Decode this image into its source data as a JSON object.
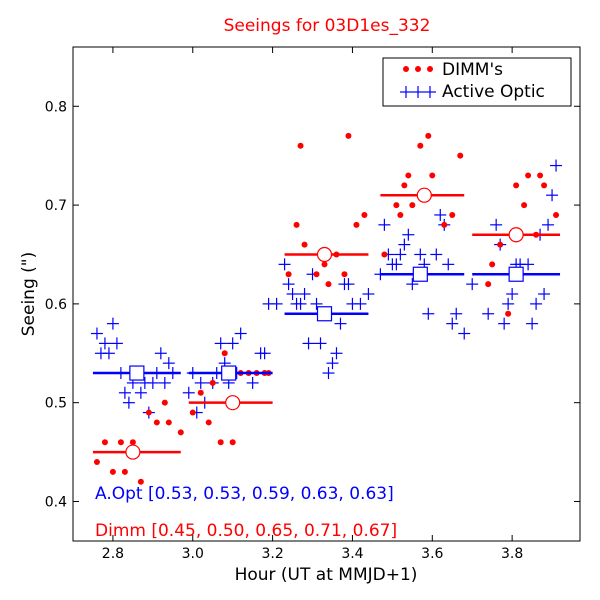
{
  "chart_data": {
    "type": "scatter",
    "title": "Seeings for 03D1es_332",
    "xlabel": "Hour (UT at MMJD+1)",
    "ylabel": "Seeing (\")",
    "xlim": [
      2.7,
      3.97
    ],
    "ylim": [
      0.36,
      0.86
    ],
    "xticks": [
      "2.8",
      "3.0",
      "3.2",
      "3.4",
      "3.6",
      "3.8"
    ],
    "yticks": [
      "0.4",
      "0.5",
      "0.6",
      "0.7",
      "0.8"
    ],
    "grid": false,
    "legend_position": "top-right",
    "colors": {
      "dimm": "#ff0000",
      "aopt": "#0000ff",
      "axes": "#000000",
      "title": "#ff0000"
    },
    "series": [
      {
        "name": "DIMM's",
        "marker": "dot",
        "color": "#ff0000",
        "points": [
          [
            2.76,
            0.44
          ],
          [
            2.78,
            0.46
          ],
          [
            2.8,
            0.43
          ],
          [
            2.82,
            0.46
          ],
          [
            2.83,
            0.43
          ],
          [
            2.85,
            0.46
          ],
          [
            2.87,
            0.42
          ],
          [
            2.89,
            0.49
          ],
          [
            2.91,
            0.48
          ],
          [
            2.93,
            0.5
          ],
          [
            2.94,
            0.48
          ],
          [
            2.97,
            0.47
          ],
          [
            3.0,
            0.49
          ],
          [
            3.02,
            0.51
          ],
          [
            3.04,
            0.48
          ],
          [
            3.05,
            0.52
          ],
          [
            3.07,
            0.46
          ],
          [
            3.08,
            0.55
          ],
          [
            3.1,
            0.46
          ],
          [
            3.12,
            0.53
          ],
          [
            3.14,
            0.53
          ],
          [
            3.16,
            0.53
          ],
          [
            3.18,
            0.53
          ],
          [
            3.19,
            0.53
          ],
          [
            3.24,
            0.63
          ],
          [
            3.26,
            0.68
          ],
          [
            3.27,
            0.76
          ],
          [
            3.28,
            0.66
          ],
          [
            3.31,
            0.63
          ],
          [
            3.33,
            0.64
          ],
          [
            3.34,
            0.62
          ],
          [
            3.36,
            0.65
          ],
          [
            3.38,
            0.63
          ],
          [
            3.39,
            0.77
          ],
          [
            3.41,
            0.68
          ],
          [
            3.43,
            0.69
          ],
          [
            3.48,
            0.65
          ],
          [
            3.51,
            0.7
          ],
          [
            3.52,
            0.69
          ],
          [
            3.53,
            0.72
          ],
          [
            3.54,
            0.73
          ],
          [
            3.55,
            0.7
          ],
          [
            3.57,
            0.76
          ],
          [
            3.59,
            0.77
          ],
          [
            3.6,
            0.73
          ],
          [
            3.63,
            0.68
          ],
          [
            3.65,
            0.69
          ],
          [
            3.67,
            0.75
          ],
          [
            3.74,
            0.62
          ],
          [
            3.75,
            0.64
          ],
          [
            3.77,
            0.66
          ],
          [
            3.79,
            0.59
          ],
          [
            3.81,
            0.72
          ],
          [
            3.83,
            0.7
          ],
          [
            3.84,
            0.73
          ],
          [
            3.86,
            0.67
          ],
          [
            3.87,
            0.73
          ],
          [
            3.88,
            0.72
          ],
          [
            3.91,
            0.69
          ]
        ]
      },
      {
        "name": "Active Optic",
        "marker": "plus",
        "color": "#0000ff",
        "points": [
          [
            2.76,
            0.57
          ],
          [
            2.77,
            0.55
          ],
          [
            2.78,
            0.56
          ],
          [
            2.79,
            0.55
          ],
          [
            2.8,
            0.58
          ],
          [
            2.81,
            0.56
          ],
          [
            2.82,
            0.53
          ],
          [
            2.83,
            0.51
          ],
          [
            2.84,
            0.5
          ],
          [
            2.85,
            0.52
          ],
          [
            2.86,
            0.53
          ],
          [
            2.87,
            0.51
          ],
          [
            2.88,
            0.52
          ],
          [
            2.89,
            0.49
          ],
          [
            2.9,
            0.52
          ],
          [
            2.91,
            0.53
          ],
          [
            2.92,
            0.55
          ],
          [
            2.93,
            0.52
          ],
          [
            2.94,
            0.54
          ],
          [
            2.95,
            0.53
          ],
          [
            2.99,
            0.51
          ],
          [
            3.0,
            0.53
          ],
          [
            3.01,
            0.49
          ],
          [
            3.02,
            0.52
          ],
          [
            3.03,
            0.5
          ],
          [
            3.05,
            0.52
          ],
          [
            3.06,
            0.53
          ],
          [
            3.07,
            0.56
          ],
          [
            3.08,
            0.54
          ],
          [
            3.09,
            0.52
          ],
          [
            3.1,
            0.56
          ],
          [
            3.11,
            0.53
          ],
          [
            3.12,
            0.57
          ],
          [
            3.15,
            0.52
          ],
          [
            3.17,
            0.55
          ],
          [
            3.18,
            0.55
          ],
          [
            3.19,
            0.6
          ],
          [
            3.21,
            0.6
          ],
          [
            3.23,
            0.64
          ],
          [
            3.24,
            0.62
          ],
          [
            3.25,
            0.61
          ],
          [
            3.26,
            0.6
          ],
          [
            3.27,
            0.6
          ],
          [
            3.28,
            0.61
          ],
          [
            3.29,
            0.56
          ],
          [
            3.3,
            0.63
          ],
          [
            3.31,
            0.6
          ],
          [
            3.32,
            0.56
          ],
          [
            3.33,
            0.59
          ],
          [
            3.34,
            0.53
          ],
          [
            3.35,
            0.54
          ],
          [
            3.36,
            0.55
          ],
          [
            3.37,
            0.58
          ],
          [
            3.38,
            0.62
          ],
          [
            3.39,
            0.62
          ],
          [
            3.4,
            0.6
          ],
          [
            3.42,
            0.6
          ],
          [
            3.44,
            0.61
          ],
          [
            3.47,
            0.63
          ],
          [
            3.48,
            0.68
          ],
          [
            3.49,
            0.65
          ],
          [
            3.5,
            0.64
          ],
          [
            3.51,
            0.64
          ],
          [
            3.52,
            0.65
          ],
          [
            3.53,
            0.66
          ],
          [
            3.54,
            0.67
          ],
          [
            3.55,
            0.62
          ],
          [
            3.56,
            0.63
          ],
          [
            3.57,
            0.65
          ],
          [
            3.58,
            0.64
          ],
          [
            3.59,
            0.59
          ],
          [
            3.61,
            0.65
          ],
          [
            3.62,
            0.69
          ],
          [
            3.63,
            0.68
          ],
          [
            3.64,
            0.64
          ],
          [
            3.65,
            0.58
          ],
          [
            3.66,
            0.59
          ],
          [
            3.68,
            0.57
          ],
          [
            3.7,
            0.62
          ],
          [
            3.74,
            0.59
          ],
          [
            3.76,
            0.68
          ],
          [
            3.77,
            0.66
          ],
          [
            3.78,
            0.58
          ],
          [
            3.79,
            0.6
          ],
          [
            3.8,
            0.61
          ],
          [
            3.81,
            0.64
          ],
          [
            3.82,
            0.64
          ],
          [
            3.84,
            0.64
          ],
          [
            3.85,
            0.58
          ],
          [
            3.86,
            0.6
          ],
          [
            3.87,
            0.67
          ],
          [
            3.88,
            0.61
          ],
          [
            3.89,
            0.68
          ],
          [
            3.9,
            0.71
          ],
          [
            3.91,
            0.74
          ]
        ]
      }
    ],
    "dimm_means": [
      {
        "x_range": [
          2.75,
          2.97
        ],
        "x": 2.85,
        "value": 0.45
      },
      {
        "x_range": [
          2.99,
          3.2
        ],
        "x": 3.1,
        "value": 0.5
      },
      {
        "x_range": [
          3.23,
          3.44
        ],
        "x": 3.33,
        "value": 0.65
      },
      {
        "x_range": [
          3.47,
          3.68
        ],
        "x": 3.58,
        "value": 0.71
      },
      {
        "x_range": [
          3.7,
          3.92
        ],
        "x": 3.81,
        "value": 0.67
      }
    ],
    "aopt_means": [
      {
        "x_range": [
          2.75,
          2.97
        ],
        "x": 2.86,
        "value": 0.53
      },
      {
        "x_range": [
          2.99,
          3.2
        ],
        "x": 3.09,
        "value": 0.53
      },
      {
        "x_range": [
          3.23,
          3.44
        ],
        "x": 3.33,
        "value": 0.59
      },
      {
        "x_range": [
          3.47,
          3.68
        ],
        "x": 3.57,
        "value": 0.63
      },
      {
        "x_range": [
          3.7,
          3.92
        ],
        "x": 3.81,
        "value": 0.63
      }
    ],
    "annotations": {
      "aopt": "A.Opt [0.53, 0.53, 0.59, 0.63, 0.63]",
      "dimm": "Dimm [0.45, 0.50, 0.65, 0.71, 0.67]"
    }
  }
}
